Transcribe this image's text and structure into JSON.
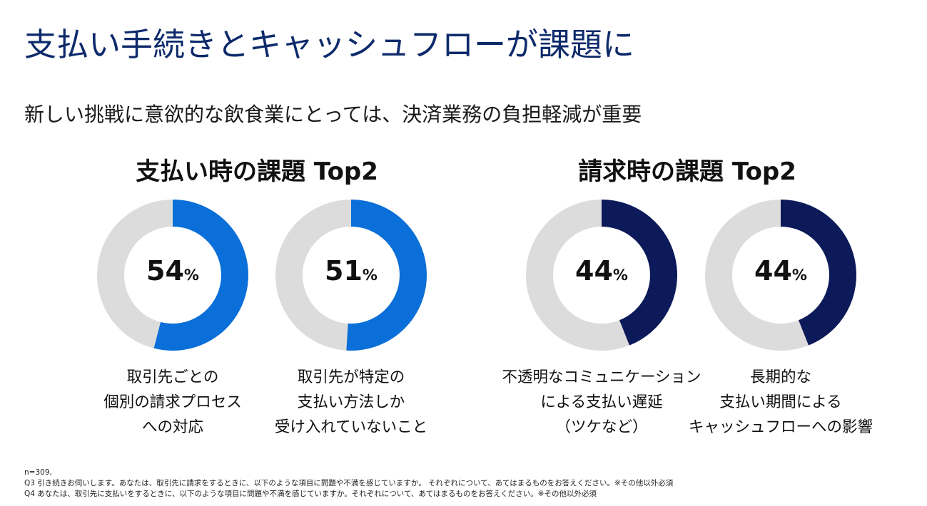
{
  "title": "支払い手続きとキャッシュフローが課題に",
  "subtitle": "新しい挑戦に意欲的な飲食業にとっては、決済業務の負担軽減が重要",
  "colors": {
    "title": "#0d2a6b",
    "track": "#dcdcdc",
    "payment_fill": "#0a6fd8",
    "billing_fill": "#0c1a5a"
  },
  "chart_data": [
    {
      "type": "pie",
      "variant": "donut",
      "title": "支払い時の課題 Top2",
      "series": [
        {
          "name": "取引先ごとの個別の請求プロセスへの対応",
          "value": 54,
          "unit": "%",
          "label_lines": [
            "取引先ごとの",
            "個別の請求プロセス",
            "への対応"
          ]
        },
        {
          "name": "取引先が特定の支払い方法しか受け入れていないこと",
          "value": 51,
          "unit": "%",
          "label_lines": [
            "取引先が特定の",
            "支払い方法しか",
            "受け入れていないこと"
          ]
        }
      ]
    },
    {
      "type": "pie",
      "variant": "donut",
      "title": "請求時の課題 Top2",
      "series": [
        {
          "name": "不透明なコミュニケーションによる支払い遅延（ツケなど）",
          "value": 44,
          "unit": "%",
          "label_lines": [
            "不透明なコミュニケーション",
            "による支払い遅延",
            "（ツケなど）"
          ]
        },
        {
          "name": "長期的な支払い期間によるキャッシュフローへの影響",
          "value": 44,
          "unit": "%",
          "label_lines": [
            "長期的な",
            "支払い期間による",
            "キャッシュフローへの影響"
          ]
        }
      ]
    }
  ],
  "footnote": {
    "n": "n=309,",
    "q3": "Q3 引き続きお伺いします。あなたは、取引先に請求をするときに、以下のような項目に問題や不満を感じていますか。 それぞれについて、あてはまるものをお答えください。※その他以外必須",
    "q4": "Q4 あなたは、取引先に支払いをするときに、以下のような項目に問題や不満を感じていますか。それぞれについて、あてはまるものをお答えください。※その他以外必須"
  }
}
